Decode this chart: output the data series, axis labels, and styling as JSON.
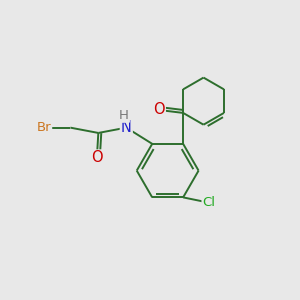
{
  "background_color": "#e8e8e8",
  "bond_color": "#2d6e2d",
  "atom_colors": {
    "O": "#cc0000",
    "N": "#2222cc",
    "Br": "#cc7722",
    "Cl": "#22aa22",
    "H": "#777777",
    "C": "#2d6e2d"
  },
  "font_size": 9.5,
  "line_width": 1.4
}
